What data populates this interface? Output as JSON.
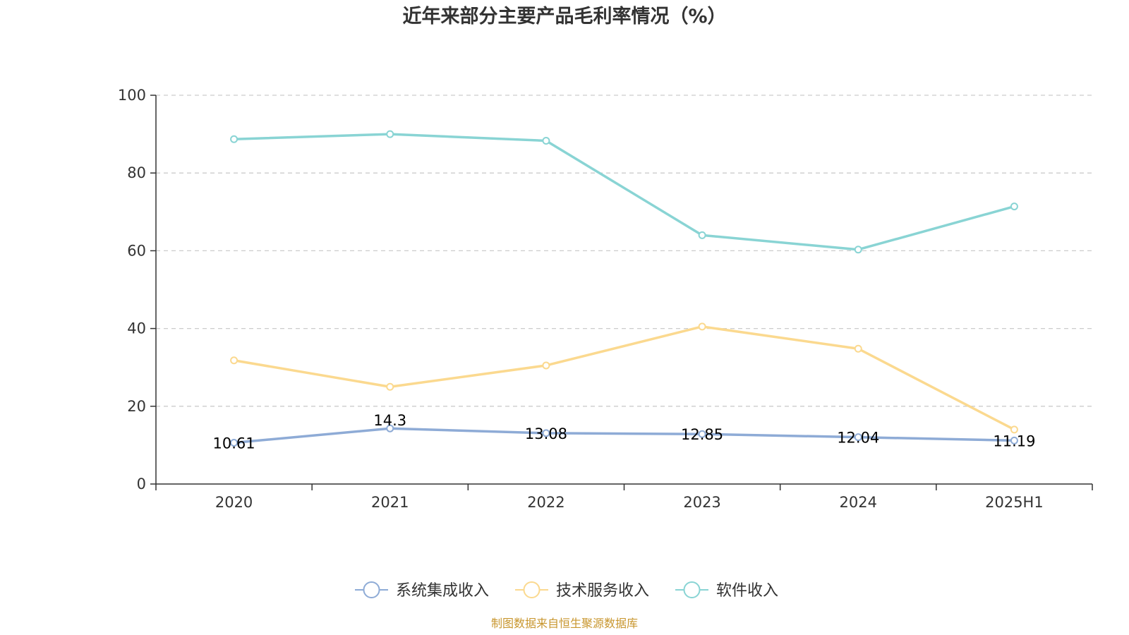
{
  "chart_data": {
    "type": "line",
    "title": "近年来部分主要产品毛利率情况（%）",
    "xlabel": "",
    "ylabel": "",
    "categories": [
      "2020",
      "2021",
      "2022",
      "2023",
      "2024",
      "2025H1"
    ],
    "ylim": [
      0,
      100
    ],
    "yticks": [
      0,
      20,
      40,
      60,
      80,
      100
    ],
    "grid": true,
    "legend_position": "bottom",
    "series": [
      {
        "name": "系统集成收入",
        "color": "#8eabd6",
        "values": [
          10.61,
          14.3,
          13.08,
          12.85,
          12.04,
          11.19
        ],
        "show_labels": true,
        "labels": [
          "10.61",
          "14.3",
          "13.08",
          "12.85",
          "12.04",
          "11.19"
        ]
      },
      {
        "name": "技术服务收入",
        "color": "#fbd98f",
        "values": [
          31.8,
          25.0,
          30.5,
          40.5,
          34.8,
          14.0
        ],
        "show_labels": false
      },
      {
        "name": "软件收入",
        "color": "#89d4d4",
        "values": [
          88.7,
          90.0,
          88.3,
          64.0,
          60.3,
          71.4
        ],
        "show_labels": false
      }
    ]
  },
  "source_note": "制图数据来自恒生聚源数据库",
  "source_color": "#c8962e"
}
